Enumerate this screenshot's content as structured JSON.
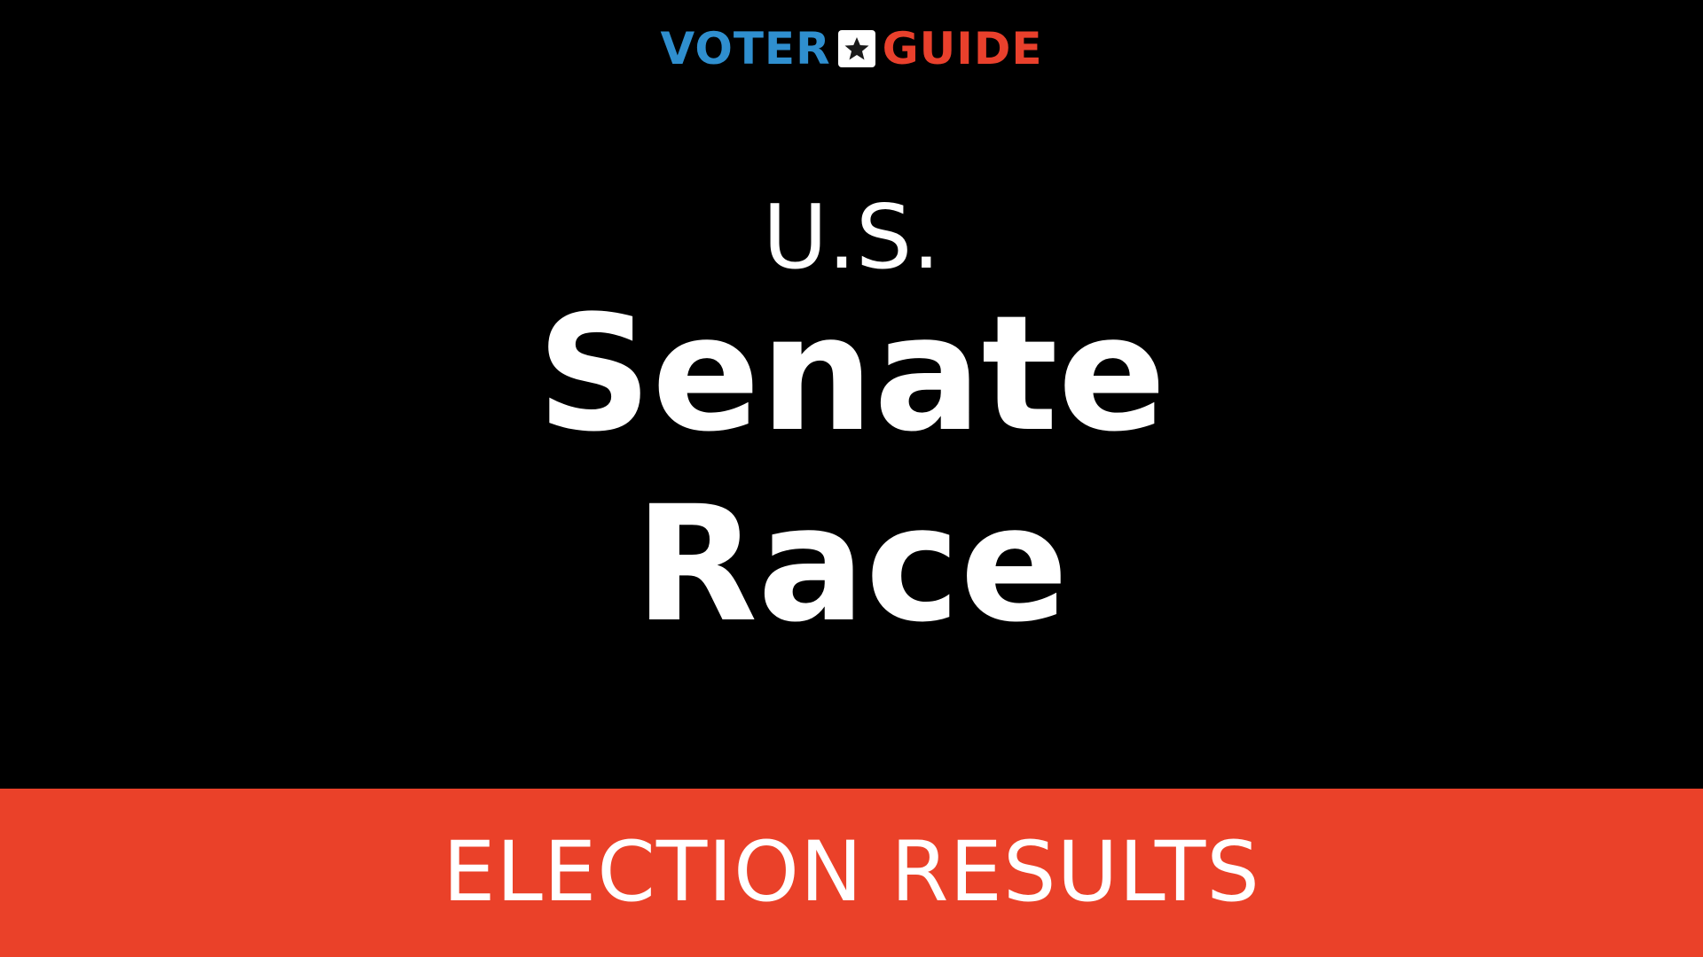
{
  "logo": {
    "left_word": "VOTER",
    "right_word": "GUIDE",
    "icon": "star-icon",
    "colors": {
      "left_word": "#2f8fcf",
      "right_word": "#e9402c",
      "icon_box": "#ffffff",
      "star": "#1a1a1a"
    }
  },
  "headline": {
    "line1": "U.S.",
    "line2": "Senate",
    "line3": "Race"
  },
  "banner": {
    "text": "ELECTION RESULTS",
    "color": "#ea4129"
  },
  "colors": {
    "background": "#000000",
    "text": "#ffffff"
  }
}
